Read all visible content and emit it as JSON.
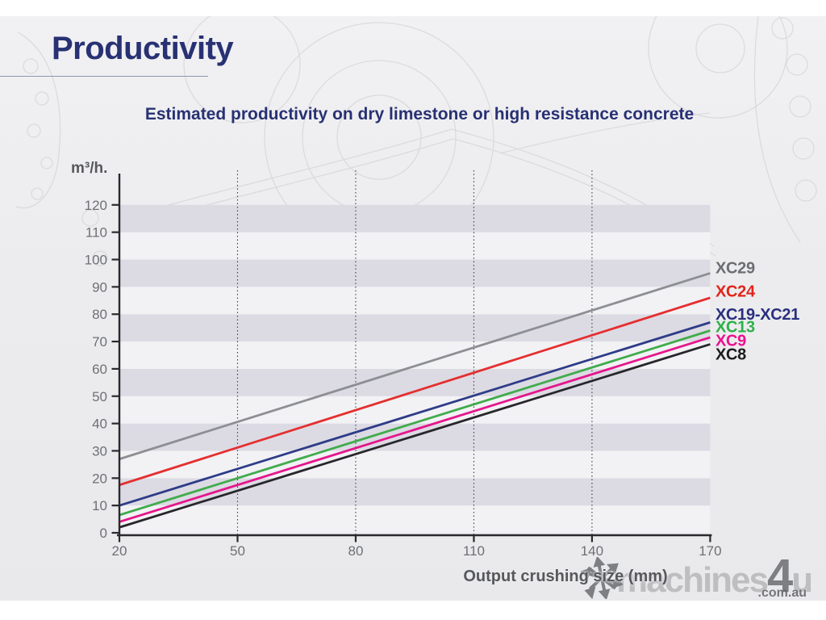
{
  "page": {
    "title": "Productivity",
    "subtitle": "Estimated productivity on dry limestone or high resistance concrete"
  },
  "watermark": {
    "icon": "asterisk-star-icon",
    "logo_prefix": "machines",
    "logo_number": "4",
    "logo_suffix": "u",
    "domain": ".com.au"
  },
  "chart_data": {
    "type": "line",
    "title": "Estimated productivity on dry limestone or high resistance concrete",
    "xlabel": "Output crushing size (mm)",
    "ylabel": "m³/h.",
    "xlim": [
      20,
      170
    ],
    "ylim": [
      0,
      120
    ],
    "x_ticks": [
      20,
      50,
      80,
      110,
      140,
      170
    ],
    "y_ticks": [
      0,
      10,
      20,
      30,
      40,
      50,
      60,
      70,
      80,
      90,
      100,
      110,
      120
    ],
    "grid": {
      "vertical_dotted_at": [
        50,
        80,
        110,
        140
      ],
      "horizontal_bands_shaded": [
        [
          10,
          20
        ],
        [
          30,
          40
        ],
        [
          50,
          60
        ],
        [
          70,
          80
        ],
        [
          90,
          100
        ],
        [
          110,
          120
        ]
      ],
      "band_color": "#dcdbe4",
      "band_light_color": "#f2f2f5"
    },
    "legend_position": "right-of-plot",
    "axis_color": "#2a2a2e",
    "tick_label_color": "#6e7073",
    "series": [
      {
        "name": "XC29",
        "x": [
          20,
          170
        ],
        "values": [
          27,
          95
        ],
        "color": "#8d8f93",
        "label_color": "#6d6e71",
        "label_value": 97
      },
      {
        "name": "XC24",
        "x": [
          20,
          170
        ],
        "values": [
          17.5,
          86
        ],
        "color": "#e52f2f",
        "label_color": "#e1251b",
        "label_value": 88.5
      },
      {
        "name": "XC19-XC21",
        "x": [
          20,
          170
        ],
        "values": [
          10,
          77
        ],
        "color": "#2f3c88",
        "label_color": "#2b2f7e",
        "label_value": 80
      },
      {
        "name": "XC13",
        "x": [
          20,
          170
        ],
        "values": [
          6.5,
          74
        ],
        "color": "#41ab4c",
        "label_color": "#2fb14b",
        "label_value": 75.5
      },
      {
        "name": "XC9",
        "x": [
          20,
          170
        ],
        "values": [
          4,
          71.5
        ],
        "color": "#e5168c",
        "label_color": "#ed1090",
        "label_value": 70.5
      },
      {
        "name": "XC8",
        "x": [
          20,
          170
        ],
        "values": [
          2,
          69
        ],
        "color": "#27272b",
        "label_color": "#1c1c1f",
        "label_value": 65.5
      }
    ]
  }
}
